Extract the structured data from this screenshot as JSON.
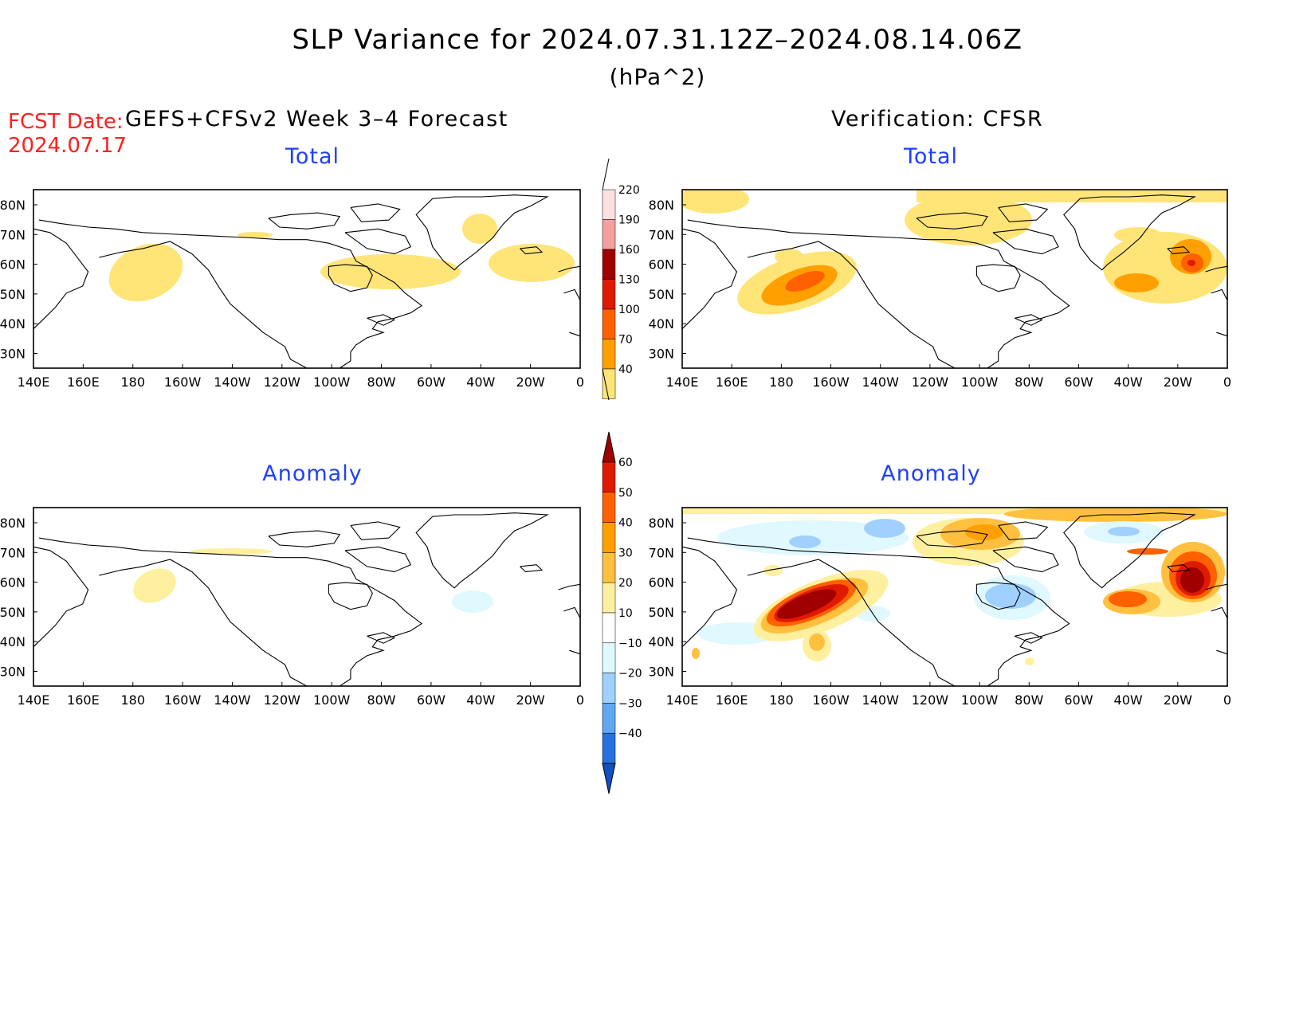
{
  "header": {
    "title": "SLP Variance for 2024.07.31.12Z–2024.08.14.06Z",
    "units": "(hPa^2)",
    "fcst_label": "FCST Date:",
    "fcst_date": "2024.07.17",
    "left_heading": "GEFS+CFSv2 Week 3–4 Forecast",
    "right_heading": "Verification: CFSR"
  },
  "panels": {
    "total_forecast_title": "Total",
    "total_verif_title": "Total",
    "anom_forecast_title": "Anomaly",
    "anom_verif_title": "Anomaly"
  },
  "axes": {
    "lon_labels": [
      "140E",
      "160E",
      "180",
      "160W",
      "140W",
      "120W",
      "100W",
      "80W",
      "60W",
      "40W",
      "20W",
      "0"
    ],
    "lat_labels": [
      "80N",
      "70N",
      "60N",
      "50N",
      "40N",
      "30N"
    ]
  },
  "colorbar_total": {
    "levels": [
      "220",
      "190",
      "160",
      "130",
      "100",
      "70",
      "40"
    ],
    "colors": [
      "#ffe0e0",
      "#f4a0a0",
      "#a00000",
      "#e01a00",
      "#ff6000",
      "#ffa000",
      "#ffe478"
    ]
  },
  "colorbar_anomaly": {
    "levels": [
      "60",
      "50",
      "40",
      "30",
      "20",
      "10",
      "−10",
      "−20",
      "−30",
      "−40"
    ],
    "colors": [
      "#a00000",
      "#e01a00",
      "#ff6000",
      "#ffa000",
      "#ffc040",
      "#fff0a0",
      "#ffffff",
      "#e0f8ff",
      "#a0d0ff",
      "#60a8f0",
      "#2870e0",
      "#1050c0"
    ]
  }
}
